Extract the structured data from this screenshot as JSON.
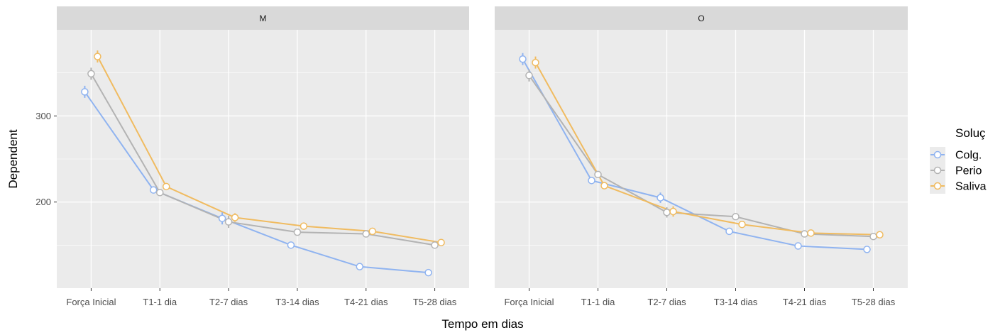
{
  "chart_data": {
    "type": "line",
    "xlabel": "Tempo em dias",
    "ylabel": "Dependent",
    "categories": [
      "Força Inicial",
      "T1-1 dia",
      "T2-7 dias",
      "T3-14 dias",
      "T4-21 dias",
      "T5-28 dias"
    ],
    "ylim": [
      100,
      400
    ],
    "yticks": [
      200,
      300
    ],
    "grid": true,
    "legend": {
      "title": "Soluç",
      "position": "right",
      "entries": [
        "Colg.",
        "Perio",
        "Saliva"
      ]
    },
    "panels": [
      {
        "label": "M",
        "series": [
          {
            "name": "Colg.",
            "color": "#8fb3f0",
            "values": [
              328,
              214,
              181,
              150,
              125,
              118
            ],
            "errors": [
              7,
              3,
              7,
              2,
              2,
              2
            ]
          },
          {
            "name": "Perio",
            "color": "#b3b3b3",
            "values": [
              349,
              211,
              177,
              165,
              163,
              150
            ],
            "errors": [
              7,
              3,
              7,
              2,
              2,
              2
            ]
          },
          {
            "name": "Saliva",
            "color": "#f0bb60",
            "values": [
              369,
              218,
              182,
              172,
              166,
              153
            ],
            "errors": [
              7,
              3,
              5,
              2,
              2,
              2
            ]
          }
        ]
      },
      {
        "label": "O",
        "series": [
          {
            "name": "Colg.",
            "color": "#8fb3f0",
            "values": [
              366,
              225,
              205,
              166,
              149,
              145
            ],
            "errors": [
              7,
              3,
              6,
              2,
              2,
              2
            ]
          },
          {
            "name": "Perio",
            "color": "#b3b3b3",
            "values": [
              347,
              232,
              188,
              183,
              163,
              160
            ],
            "errors": [
              7,
              3,
              6,
              2,
              2,
              2
            ]
          },
          {
            "name": "Saliva",
            "color": "#f0bb60",
            "values": [
              362,
              219,
              189,
              174,
              164,
              162
            ],
            "errors": [
              7,
              3,
              6,
              2,
              2,
              2
            ]
          }
        ]
      }
    ]
  }
}
